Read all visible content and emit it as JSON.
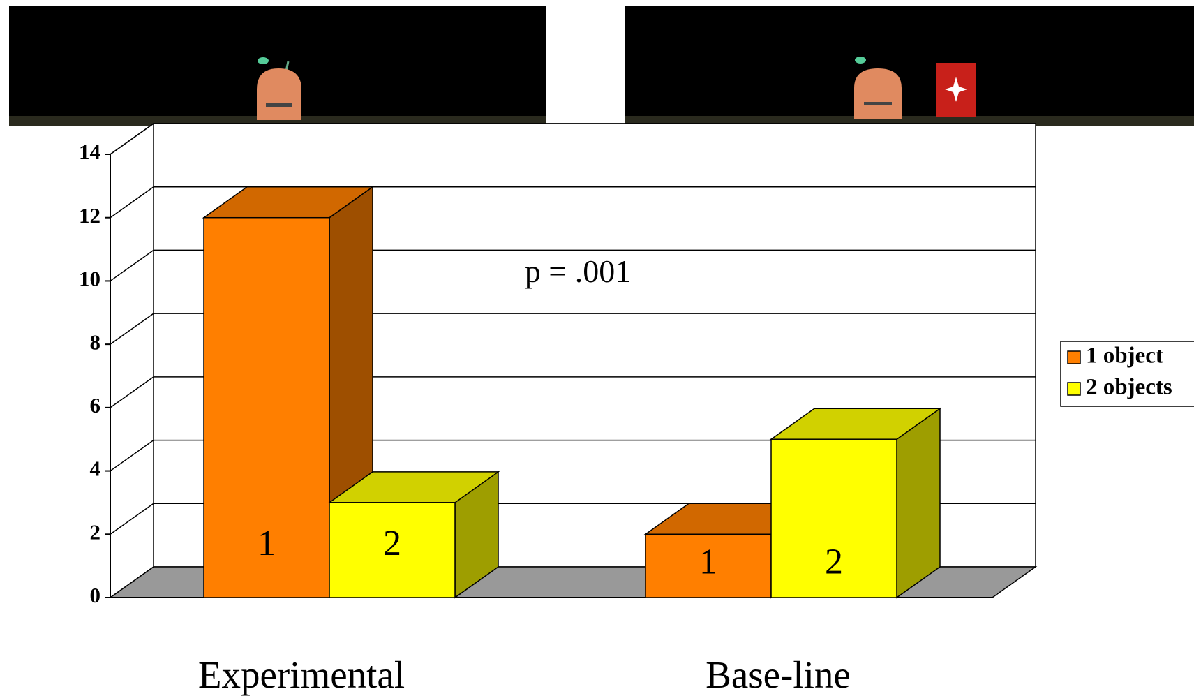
{
  "chart_data": {
    "type": "bar3d",
    "categories": [
      "Experimental",
      "Base-line"
    ],
    "series": [
      {
        "name": "1 object",
        "color": "#ff7f00",
        "values": [
          12,
          2
        ],
        "bar_label": "1"
      },
      {
        "name": "2 objects",
        "color": "#ffff00",
        "values": [
          3,
          5
        ],
        "bar_label": "2"
      }
    ],
    "annotation": "p = .001",
    "ylim": [
      0,
      14
    ],
    "yticks": [
      0,
      2,
      4,
      6,
      8,
      10,
      12,
      14
    ],
    "grid": true,
    "legend": "right"
  }
}
